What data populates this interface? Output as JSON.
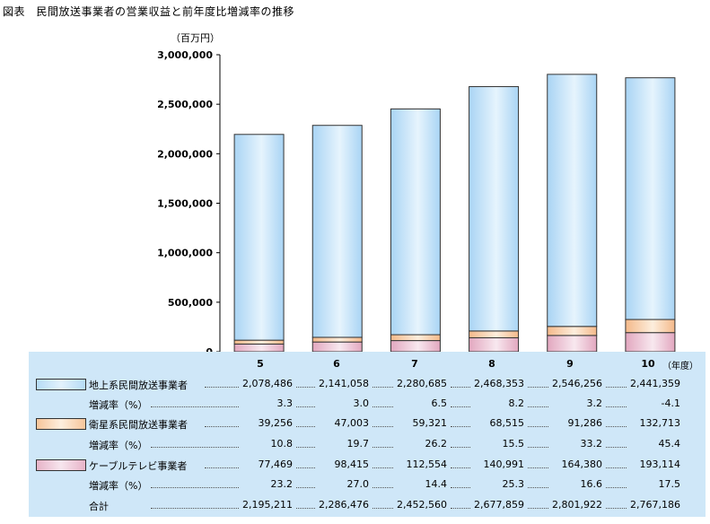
{
  "title": "図表　民間放送事業者の営業収益と前年度比増減率の推移",
  "unit": "（百万円）",
  "year_unit": "（年度）",
  "chart_data": {
    "type": "bar",
    "stacked": true,
    "categories": [
      "5",
      "6",
      "7",
      "8",
      "9",
      "10"
    ],
    "ylim": [
      0,
      3000000
    ],
    "yticks": [
      "0",
      "500,000",
      "1,000,000",
      "1,500,000",
      "2,000,000",
      "2,500,000",
      "3,000,000"
    ],
    "series": [
      {
        "name": "ケーブルテレビ事業者",
        "color": "#e7b3c8",
        "values": [
          77469,
          98415,
          112554,
          140991,
          164380,
          193114
        ]
      },
      {
        "name": "衛星系民間放送事業者",
        "color": "#f7c59a",
        "values": [
          39256,
          47003,
          59321,
          68515,
          91286,
          132713
        ]
      },
      {
        "name": "地上系民間放送事業者",
        "color": "#b6dcf6",
        "values": [
          2078486,
          2141058,
          2280685,
          2468353,
          2546256,
          2441359
        ]
      }
    ]
  },
  "table": {
    "rows": [
      {
        "label": "地上系民間放送事業者",
        "swatch": "blue",
        "values": [
          "2,078,486",
          "2,141,058",
          "2,280,685",
          "2,468,353",
          "2,546,256",
          "2,441,359"
        ]
      },
      {
        "label": "増減率（%）",
        "swatch": "",
        "values": [
          "3.3",
          "3.0",
          "6.5",
          "8.2",
          "3.2",
          "-4.1"
        ]
      },
      {
        "label": "衛星系民間放送事業者",
        "swatch": "orange",
        "values": [
          "39,256",
          "47,003",
          "59,321",
          "68,515",
          "91,286",
          "132,713"
        ]
      },
      {
        "label": "増減率（%）",
        "swatch": "",
        "values": [
          "10.8",
          "19.7",
          "26.2",
          "15.5",
          "33.2",
          "45.4"
        ]
      },
      {
        "label": "ケーブルテレビ事業者",
        "swatch": "pink",
        "values": [
          "77,469",
          "98,415",
          "112,554",
          "140,991",
          "164,380",
          "193,114"
        ]
      },
      {
        "label": "増減率（%）",
        "swatch": "",
        "values": [
          "23.2",
          "27.0",
          "14.4",
          "25.3",
          "16.6",
          "17.5"
        ]
      },
      {
        "label": "合計",
        "swatch": "",
        "values": [
          "2,195,211",
          "2,286,476",
          "2,452,560",
          "2,677,859",
          "2,801,922",
          "2,767,186"
        ]
      }
    ]
  }
}
